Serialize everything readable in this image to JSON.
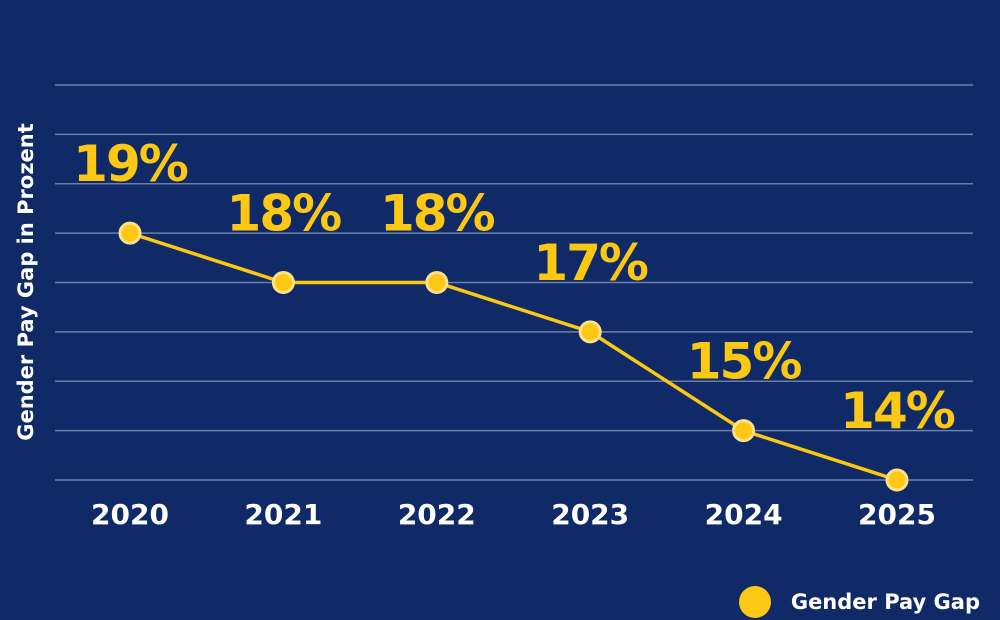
{
  "chart_data": {
    "type": "line",
    "title": "",
    "xlabel": "",
    "ylabel": "Gender Pay Gap in Prozent",
    "categories": [
      "2020",
      "2021",
      "2022",
      "2023",
      "2024",
      "2025"
    ],
    "series": [
      {
        "name": "Gender Pay Gap",
        "values": [
          19,
          18,
          18,
          17,
          15,
          14
        ]
      }
    ],
    "data_labels": [
      "19%",
      "18%",
      "18%",
      "17%",
      "15%",
      "14%"
    ],
    "ylim": [
      14,
      22
    ],
    "y_gridlines": [
      14,
      15,
      16,
      17,
      18,
      19,
      20,
      21,
      22
    ],
    "grid": true,
    "legend_position": "bottom-right",
    "colors": {
      "background": "#0f2a66",
      "line": "#fcc813",
      "grid": "#6b7fad",
      "text": "#ffffff"
    }
  }
}
